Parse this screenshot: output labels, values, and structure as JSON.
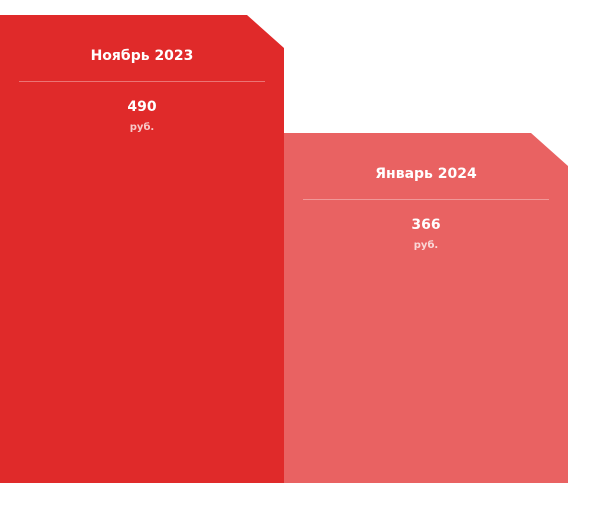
{
  "chart_data": {
    "type": "bar",
    "title": "",
    "xlabel": "",
    "ylabel": "",
    "categories": [
      "Ноябрь 2023",
      "Январь 2024"
    ],
    "values": [
      490,
      366
    ],
    "unit": "руб.",
    "colors": [
      "#e02a2a",
      "#e96262"
    ],
    "ylim": [
      0,
      490
    ],
    "grid": false
  }
}
